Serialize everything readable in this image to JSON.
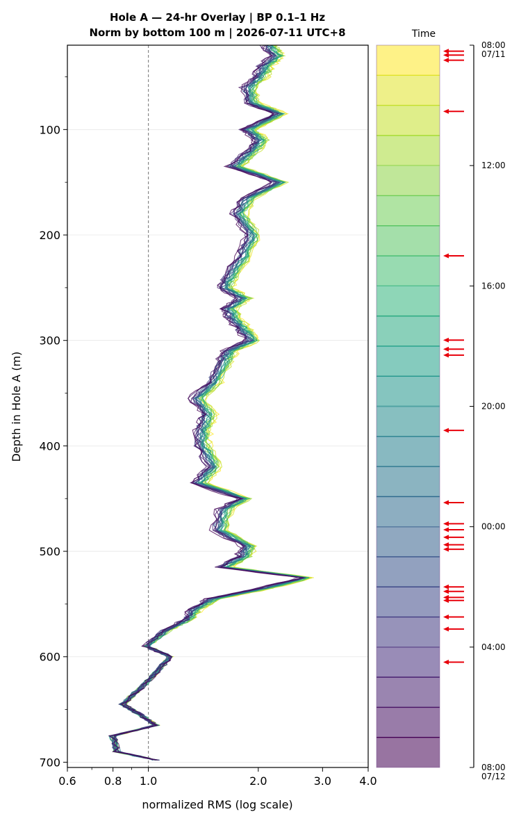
{
  "chart_data": {
    "type": "line",
    "title_line1": "Hole A — 24-hr Overlay  |  BP 0.1–1 Hz",
    "title_line2": "Norm by bottom 100 m  |  2026-07-11 UTC+8",
    "xlabel": "normalized RMS  (log scale)",
    "ylabel": "Depth in Hole A (m)",
    "xscale": "log",
    "xlim": [
      0.6,
      4.0
    ],
    "ylim": [
      705,
      20
    ],
    "y_inverted": true,
    "grid": "horizontal",
    "xticks": [
      "0.6",
      "0.8",
      "1.0",
      "2.0",
      "3.0",
      "4.0"
    ],
    "xtick_values": [
      0.6,
      0.8,
      1.0,
      2.0,
      3.0,
      4.0
    ],
    "yticks": [
      "100",
      "200",
      "300",
      "400",
      "500",
      "600",
      "700"
    ],
    "ytick_values": [
      100,
      200,
      300,
      400,
      500,
      600,
      700
    ],
    "reference_line": {
      "x": 1.0,
      "style": "dashed",
      "color": "#888888"
    },
    "colormap": "viridis",
    "n_traces": 24,
    "base_profile": {
      "depth": [
        20,
        30,
        40,
        50,
        60,
        75,
        85,
        100,
        110,
        120,
        135,
        150,
        165,
        180,
        200,
        220,
        240,
        250,
        260,
        270,
        280,
        290,
        300,
        310,
        320,
        340,
        355,
        370,
        385,
        400,
        420,
        435,
        450,
        460,
        480,
        495,
        505,
        515,
        525,
        535,
        545,
        555,
        565,
        575,
        590,
        600,
        615,
        630,
        645,
        655,
        665,
        675,
        690,
        698
      ],
      "rms": [
        2.05,
        2.15,
        2.0,
        1.95,
        1.8,
        1.85,
        2.2,
        1.8,
        1.95,
        1.85,
        1.65,
        2.2,
        1.8,
        1.7,
        1.85,
        1.75,
        1.6,
        1.55,
        1.75,
        1.6,
        1.65,
        1.75,
        1.85,
        1.6,
        1.55,
        1.45,
        1.3,
        1.4,
        1.35,
        1.35,
        1.45,
        1.32,
        1.75,
        1.55,
        1.5,
        1.8,
        1.75,
        1.55,
        2.6,
        2.0,
        1.45,
        1.3,
        1.25,
        1.1,
        0.98,
        1.15,
        1.05,
        0.95,
        0.85,
        0.95,
        1.05,
        0.8,
        0.82,
        1.05
      ]
    },
    "colorbar": {
      "label": "Time",
      "ticks": [
        "08:00",
        "12:00",
        "16:00",
        "20:00",
        "00:00",
        "04:00",
        "08:00"
      ],
      "tick_hours": [
        0,
        4,
        8,
        12,
        16,
        20,
        24
      ],
      "start_date": "07/11",
      "end_date": "07/12",
      "n_bands": 24
    },
    "event_arrows_hours": [
      0.2,
      0.33,
      0.5,
      2.2,
      7.0,
      9.8,
      10.1,
      10.3,
      12.8,
      15.2,
      15.9,
      16.1,
      16.35,
      16.6,
      16.75,
      18.0,
      18.15,
      18.35,
      18.45,
      19.0,
      19.4,
      20.5
    ]
  }
}
